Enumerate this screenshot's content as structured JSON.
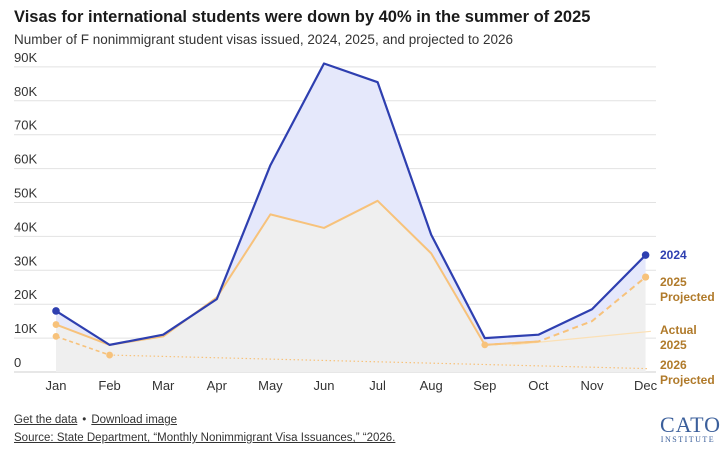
{
  "header": {
    "title": "Visas for international students were down by 40% in the summer of 2025",
    "subtitle": "Number of F nonimmigrant student visas issued, 2024, 2025, and projected to 2026"
  },
  "chart_data": {
    "type": "line",
    "categories": [
      "Jan",
      "Feb",
      "Mar",
      "Apr",
      "May",
      "Jun",
      "Jul",
      "Aug",
      "Sep",
      "Oct",
      "Nov",
      "Dec"
    ],
    "y_ticks": [
      "90K",
      "80K",
      "70K",
      "60K",
      "50K",
      "40K",
      "30K",
      "20K",
      "10K",
      "0"
    ],
    "ylim": [
      0,
      90000
    ],
    "series": [
      {
        "key": "s2024",
        "values": [
          18000,
          8000,
          11000,
          21500,
          61000,
          91000,
          85500,
          40500,
          10000,
          11000,
          18500,
          34500
        ],
        "color": "#2e3fb0",
        "dashed": false
      },
      {
        "key": "s2025",
        "values": [
          14000,
          8000,
          10500,
          22000,
          46500,
          42500,
          50500,
          35000,
          8000,
          9000,
          null,
          null
        ],
        "color": "#f7c27b",
        "dashed": false
      },
      {
        "key": "s2025proj",
        "values": [
          null,
          null,
          null,
          null,
          null,
          null,
          null,
          null,
          8000,
          9000,
          15000,
          28000
        ],
        "color": "#f7c27b",
        "dashed": true
      },
      {
        "key": "s2026proj",
        "values": [
          10500,
          5000,
          null,
          null,
          null,
          null,
          null,
          null,
          null,
          null,
          null,
          1000
        ],
        "color": "#f7c27b",
        "dashed": "dotted"
      }
    ],
    "reference_lines": [
      {
        "from": [
          8.5,
          8000
        ],
        "to": [
          11.1,
          12000
        ],
        "color": "#fbe0b5"
      }
    ],
    "end_labels": [
      {
        "text": "2024",
        "color": "#2e3fb0"
      },
      {
        "text": "2025",
        "color": "#b07a2a"
      },
      {
        "text": "Projected",
        "color": "#b07a2a"
      },
      {
        "text": "Actual",
        "color": "#b07a2a"
      },
      {
        "text": "2025",
        "color": "#b07a2a"
      },
      {
        "text": "2026",
        "color": "#b07a2a"
      },
      {
        "text": "Projected",
        "color": "#b07a2a"
      }
    ],
    "fill_2024_gap": "#e5e8fb",
    "fill_2025": "#efefef",
    "grid": true
  },
  "footer": {
    "get_data": "Get the data",
    "bullet": "•",
    "download": "Download image",
    "source": "Source: State Department, “Monthly Nonimmigrant Visa Issuances,” “2026."
  },
  "logo": {
    "line1": "CATO",
    "line2": "INSTITUTE"
  }
}
